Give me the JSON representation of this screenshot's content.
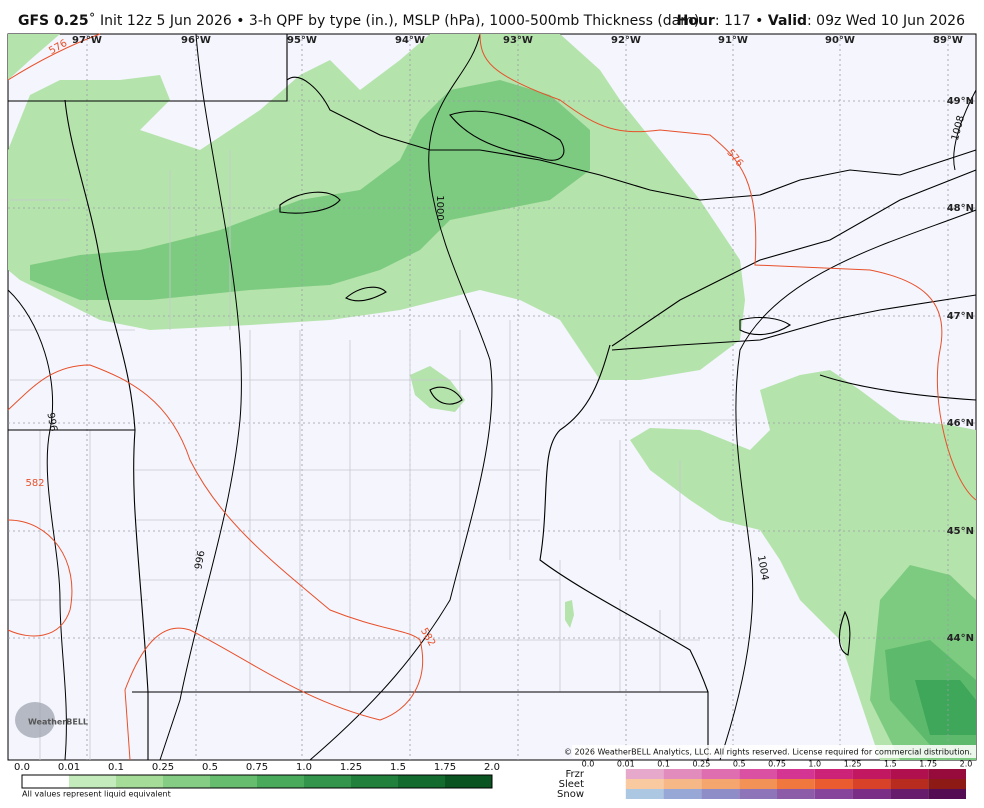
{
  "header": {
    "model": "GFS 0.25",
    "description": "˚ Init 12z 5 Jun 2026 • 3-h QPF by type (in.), MSLP (hPa), 1000-500mb Thickness (dam)",
    "hour_label": "Hour",
    "hour_value": ": 117 • ",
    "valid_label": "Valid",
    "valid_value": ": 09z Wed 10 Jun 2026"
  },
  "map": {
    "longitudes": [
      "97°W",
      "96°W",
      "95°W",
      "94°W",
      "93°W",
      "92°W",
      "91°W",
      "90°W",
      "89°W"
    ],
    "latitudes": [
      "49°N",
      "48°N",
      "47°N",
      "46°N",
      "45°N",
      "44°N"
    ],
    "thickness_labels": [
      "576",
      "576",
      "582",
      "582"
    ],
    "isobar_labels": [
      "996",
      "996",
      "1000",
      "1004",
      "1008"
    ],
    "logo": "WeatherBELL",
    "copyright": "© 2026 WeatherBELL Analytics, LLC. All rights reserved. License required for commercial distribution."
  },
  "qpf_legend": {
    "ticks": [
      "0.0",
      "0.01",
      "0.1",
      "0.25",
      "0.5",
      "0.75",
      "1.0",
      "1.25",
      "1.5",
      "1.75",
      "2.0"
    ],
    "colors": [
      "#ffffff",
      "#c4ebbb",
      "#a5dc98",
      "#85cc84",
      "#66bd6e",
      "#4aaa5c",
      "#32954b",
      "#21803c",
      "#136b2e",
      "#0a5421"
    ],
    "note": "All values represent liquid equivalent"
  },
  "type_legend": {
    "ticks": [
      "0.0",
      "0.01",
      "0.1",
      "0.25",
      "0.5",
      "0.75",
      "1.0",
      "1.25",
      "1.5",
      "1.75",
      "2.0"
    ],
    "types": [
      {
        "name": "Frzr",
        "colors": [
          "#e6a9cc",
          "#e28cbe",
          "#de6eb0",
          "#da50a2",
          "#d43592",
          "#cc2278",
          "#c21862",
          "#b0104e",
          "#960a3c"
        ]
      },
      {
        "name": "Sleet",
        "colors": [
          "#f9c9a0",
          "#f7b887",
          "#f5a56e",
          "#f39257",
          "#f0783f",
          "#ea5c30",
          "#d84228",
          "#b82c20",
          "#8e1a16"
        ]
      },
      {
        "name": "Snow",
        "colors": [
          "#abc7e2",
          "#98a8d6",
          "#8f8dc8",
          "#8e74b9",
          "#8c5ca8",
          "#86449a",
          "#7a2e86",
          "#681c6c",
          "#540c52"
        ]
      }
    ]
  }
}
